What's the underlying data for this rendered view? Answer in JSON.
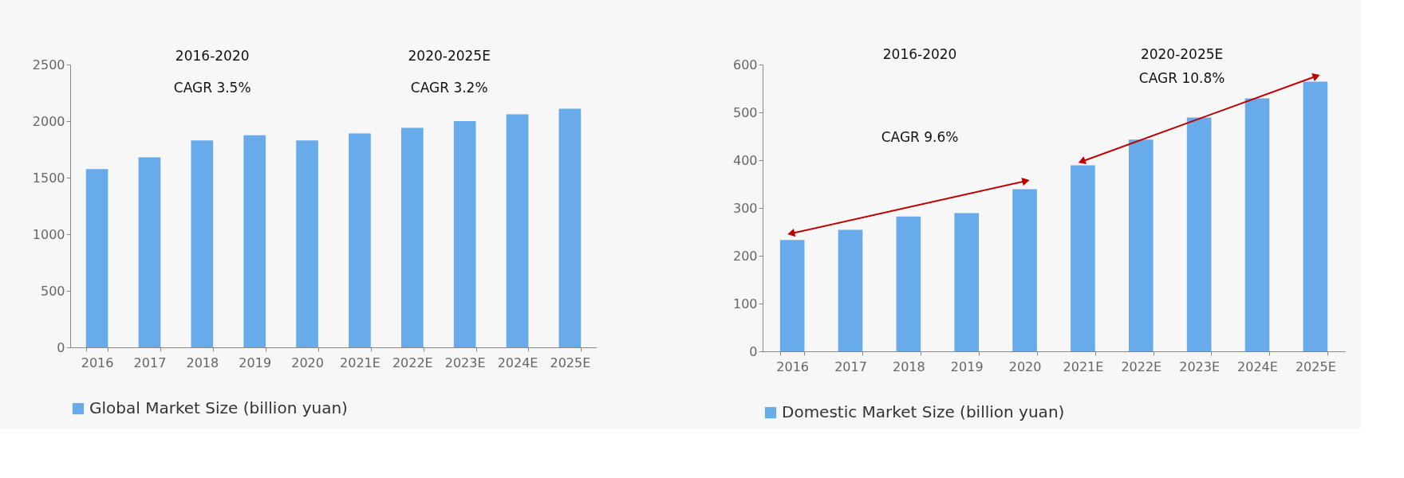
{
  "chart_data": [
    {
      "type": "bar",
      "categories": [
        "2016",
        "2017",
        "2018",
        "2019",
        "2020",
        "2021E",
        "2022E",
        "2023E",
        "2024E",
        "2025E"
      ],
      "series": [
        {
          "name": "Global Market Size (billion yuan)",
          "color": "#67abea",
          "values": [
            1575,
            1680,
            1830,
            1875,
            1830,
            1890,
            1940,
            2000,
            2060,
            2110
          ]
        }
      ],
      "ylim": [
        0,
        2500
      ],
      "yticks": [
        0,
        500,
        1000,
        1500,
        2000,
        2500
      ],
      "grid": false,
      "legend": "bottom",
      "annotations": [
        "2016-2020",
        "CAGR 3.5%",
        "2020-2025E",
        "CAGR 3.2%"
      ]
    },
    {
      "type": "bar",
      "categories": [
        "2016",
        "2017",
        "2018",
        "2019",
        "2020",
        "2021E",
        "2022E",
        "2023E",
        "2024E",
        "2025E"
      ],
      "series": [
        {
          "name": "Domestic Market Size (billion yuan)",
          "color": "#67abea",
          "values": [
            233,
            254,
            282,
            289,
            339,
            389,
            443,
            489,
            529,
            564
          ]
        },
        {
          "type": "line",
          "color": "#c00000",
          "marker": "triangle",
          "values": [
            247,
            null,
            null,
            null,
            356,
            null,
            null,
            null,
            null,
            null
          ]
        },
        {
          "type": "line",
          "color": "#c00000",
          "marker": "triangle",
          "values": [
            null,
            null,
            null,
            null,
            null,
            398,
            null,
            null,
            null,
            575
          ]
        }
      ],
      "ylim": [
        0,
        600
      ],
      "yticks": [
        0,
        100,
        200,
        300,
        400,
        500,
        600
      ],
      "grid": false,
      "legend": "bottom",
      "annotations": [
        "2016-2020",
        "CAGR 9.6%",
        "2020-2025E",
        "CAGR 10.8%"
      ]
    }
  ]
}
